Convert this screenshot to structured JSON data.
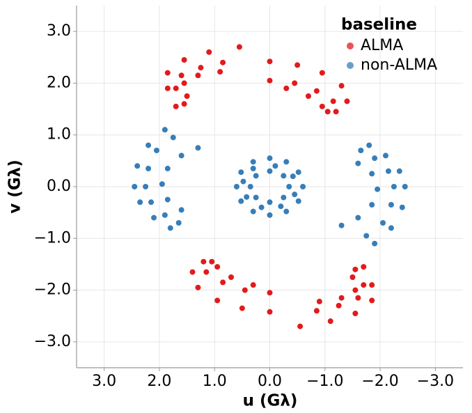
{
  "chart_data": {
    "type": "scatter",
    "x_label": "u (Gλ)",
    "y_label": "v (Gλ)",
    "legend_title": "baseline",
    "legend": "upper right",
    "grid": true,
    "xlim": [
      3.5,
      -3.5
    ],
    "ylim": [
      -3.5,
      3.5
    ],
    "xticks": [
      {
        "value": 3,
        "label": "3.0"
      },
      {
        "value": 2,
        "label": "2.0"
      },
      {
        "value": 1,
        "label": "1.0"
      },
      {
        "value": 0,
        "label": "0.0"
      },
      {
        "value": -1,
        "label": "−1.0"
      },
      {
        "value": -2,
        "label": "−2.0"
      },
      {
        "value": -3,
        "label": "−3.0"
      }
    ],
    "yticks": [
      {
        "value": 3,
        "label": "3.0"
      },
      {
        "value": 2,
        "label": "2.0"
      },
      {
        "value": 1,
        "label": "1.0"
      },
      {
        "value": 0,
        "label": "0.0"
      },
      {
        "value": -1,
        "label": "−1.0"
      },
      {
        "value": -2,
        "label": "−2.0"
      },
      {
        "value": -3,
        "label": "−3.0"
      }
    ],
    "series": [
      {
        "name": "ALMA",
        "color": "#e31a1c",
        "x": [
          1.7,
          1.85,
          1.85,
          1.55,
          1.1,
          0.55,
          1.55,
          1.7,
          1.6,
          1.25,
          0.85,
          1.5,
          1.55,
          1.3,
          0.9,
          0,
          -0.5,
          -0.95,
          -1.3,
          -1.4,
          -1.2,
          0,
          -0.45,
          -0.85,
          -1.15,
          -1.05,
          -0.3,
          -0.7,
          -0.95,
          -1.7,
          -1.85,
          -1.85,
          -1.55,
          -1.1,
          -0.55,
          -1.55,
          -1.7,
          -1.6,
          -1.25,
          -0.85,
          -1.5,
          -1.55,
          -1.3,
          -0.9,
          0,
          0.5,
          0.95,
          1.3,
          1.4,
          1.2,
          0,
          0.45,
          0.85,
          1.15,
          1.05,
          0.3,
          0.7,
          0.95
        ],
        "values": [
          1.55,
          1.9,
          2.2,
          2.45,
          2.6,
          2.7,
          1.6,
          1.9,
          2.15,
          2.3,
          2.4,
          1.75,
          2.0,
          2.15,
          2.22,
          2.42,
          2.35,
          2.2,
          1.95,
          1.65,
          1.45,
          2.05,
          2.0,
          1.85,
          1.65,
          1.45,
          1.9,
          1.75,
          1.55,
          -1.55,
          -1.9,
          -2.2,
          -2.45,
          -2.6,
          -2.7,
          -1.6,
          -1.9,
          -2.15,
          -2.3,
          -2.4,
          -1.75,
          -2.0,
          -2.15,
          -2.22,
          -2.42,
          -2.35,
          -2.2,
          -1.95,
          -1.65,
          -1.45,
          -2.05,
          -2.0,
          -1.85,
          -1.65,
          -1.45,
          -1.9,
          -1.75,
          -1.55
        ]
      },
      {
        "name": "non-ALMA",
        "color": "#377eb8",
        "x": [
          1.9,
          2.2,
          2.4,
          2.45,
          2.35,
          2.1,
          1.8,
          1.75,
          2.05,
          2.2,
          2.25,
          2.15,
          1.9,
          1.65,
          1.3,
          1.6,
          1.85,
          1.95,
          1.85,
          1.6,
          -1.9,
          -2.2,
          -2.4,
          -2.45,
          -2.35,
          -2.1,
          -1.8,
          -1.75,
          -2.05,
          -2.2,
          -2.25,
          -2.15,
          -1.9,
          -1.65,
          -1.3,
          -1.6,
          -1.85,
          -1.95,
          -1.85,
          -1.6,
          0.6,
          0.52,
          0.3,
          0,
          -0.3,
          -0.52,
          -0.6,
          -0.52,
          -0.3,
          0,
          0.3,
          0.52,
          0.35,
          0.25,
          0,
          -0.25,
          -0.35,
          -0.25,
          0,
          0.25,
          0.48,
          0.3,
          -0.1,
          -0.42,
          -0.45,
          -0.2,
          0.15,
          0.42
        ],
        "values": [
          1.1,
          0.8,
          0.4,
          0,
          -0.3,
          -0.6,
          -0.8,
          0.95,
          0.7,
          0.35,
          0,
          -0.3,
          -0.55,
          -0.7,
          0.75,
          0.6,
          0.35,
          0.05,
          -0.25,
          -0.45,
          -1.1,
          -0.8,
          -0.4,
          0,
          0.3,
          0.6,
          0.8,
          -0.95,
          -0.7,
          -0.35,
          0,
          0.3,
          0.55,
          0.7,
          -0.75,
          -0.6,
          -0.35,
          -0.05,
          0.25,
          0.45,
          0,
          0.28,
          0.48,
          0.55,
          0.48,
          0.28,
          0,
          -0.28,
          -0.48,
          -0.55,
          -0.48,
          -0.28,
          0,
          0.21,
          0.3,
          0.21,
          0,
          -0.21,
          -0.3,
          -0.21,
          0.1,
          0.35,
          0.4,
          0.2,
          -0.15,
          -0.38,
          -0.4,
          -0.2
        ]
      }
    ]
  }
}
